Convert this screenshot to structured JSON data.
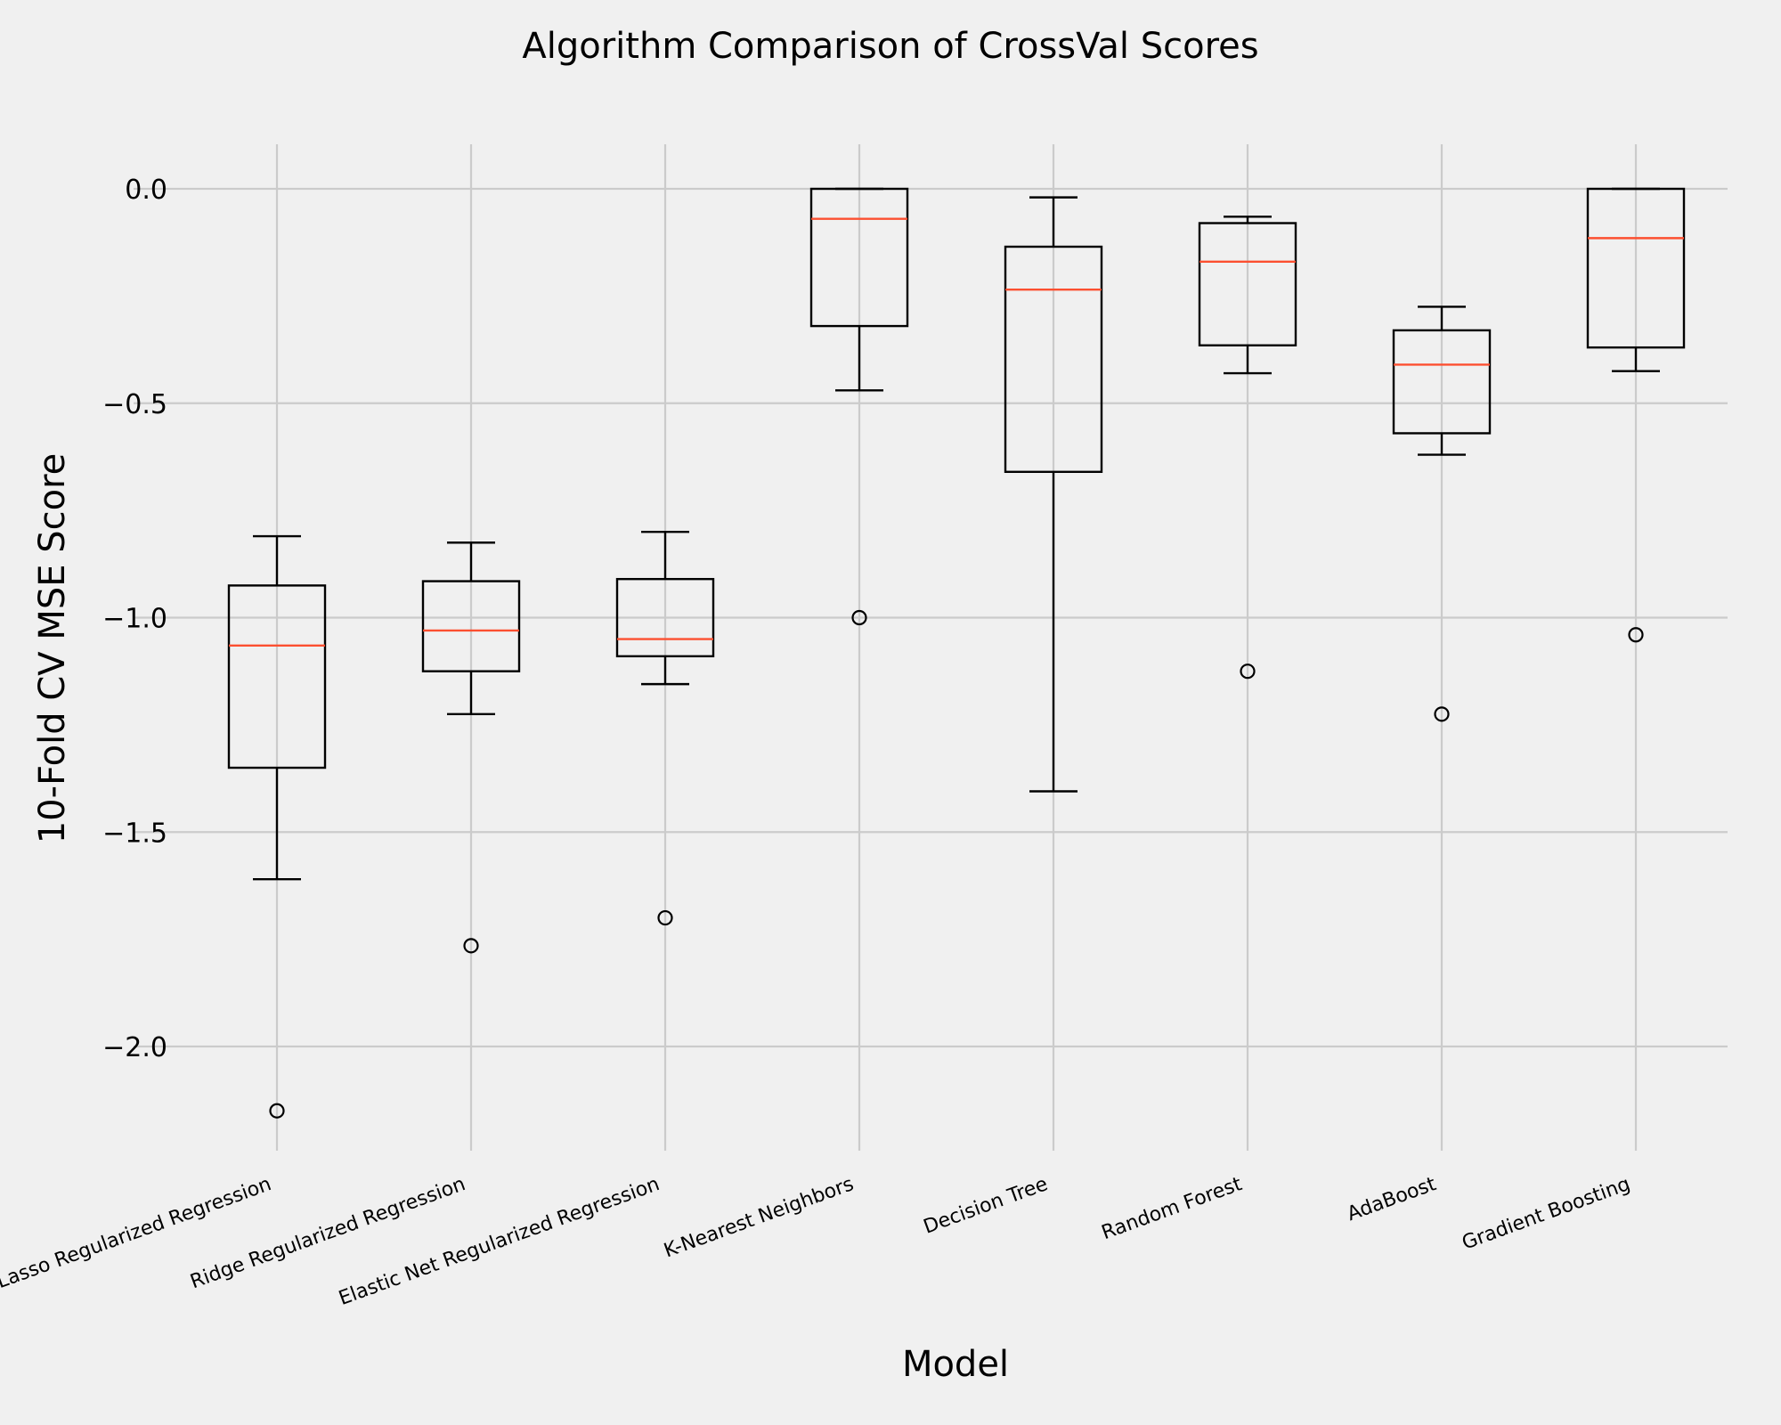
{
  "chart_data": {
    "type": "box",
    "title": "Algorithm Comparison of CrossVal Scores",
    "xlabel": "Model",
    "ylabel": "10-Fold CV MSE Score",
    "ylim": [
      -2.25,
      0.1
    ],
    "yticks": [
      0.0,
      -0.5,
      -1.0,
      -1.5,
      -2.0
    ],
    "ytick_labels": [
      "0.0",
      "−0.5",
      "−1.0",
      "−1.5",
      "−2.0"
    ],
    "grid": true,
    "colors": {
      "median": "#fc4f30",
      "box": "#000000",
      "grid": "#cbcbcb",
      "background": "#f0f0f0"
    },
    "categories": [
      "Lasso Regularized Regression",
      "Ridge Regularized Regression",
      "Elastic Net Regularized Regression",
      "K-Nearest Neighbors",
      "Decision Tree",
      "Random Forest",
      "AdaBoost",
      "Gradient Boosting"
    ],
    "boxes": [
      {
        "whisker_low": -1.61,
        "q1": -1.35,
        "median": -1.065,
        "q3": -0.925,
        "whisker_high": -0.81,
        "fliers": [
          -2.15
        ]
      },
      {
        "whisker_low": -1.225,
        "q1": -1.125,
        "median": -1.03,
        "q3": -0.915,
        "whisker_high": -0.825,
        "fliers": [
          -1.765
        ]
      },
      {
        "whisker_low": -1.155,
        "q1": -1.09,
        "median": -1.05,
        "q3": -0.91,
        "whisker_high": -0.8,
        "fliers": [
          -1.7
        ]
      },
      {
        "whisker_low": -0.47,
        "q1": -0.32,
        "median": -0.07,
        "q3": 0.0,
        "whisker_high": 0.0,
        "fliers": [
          -1.0
        ]
      },
      {
        "whisker_low": -1.405,
        "q1": -0.66,
        "median": -0.235,
        "q3": -0.135,
        "whisker_high": -0.02,
        "fliers": []
      },
      {
        "whisker_low": -0.43,
        "q1": -0.365,
        "median": -0.17,
        "q3": -0.08,
        "whisker_high": -0.065,
        "fliers": [
          -1.125
        ]
      },
      {
        "whisker_low": -0.62,
        "q1": -0.57,
        "median": -0.41,
        "q3": -0.33,
        "whisker_high": -0.275,
        "fliers": [
          -1.225
        ]
      },
      {
        "whisker_low": -0.425,
        "q1": -0.37,
        "median": -0.115,
        "q3": 0.0,
        "whisker_high": 0.0,
        "fliers": [
          -1.04
        ]
      }
    ]
  }
}
